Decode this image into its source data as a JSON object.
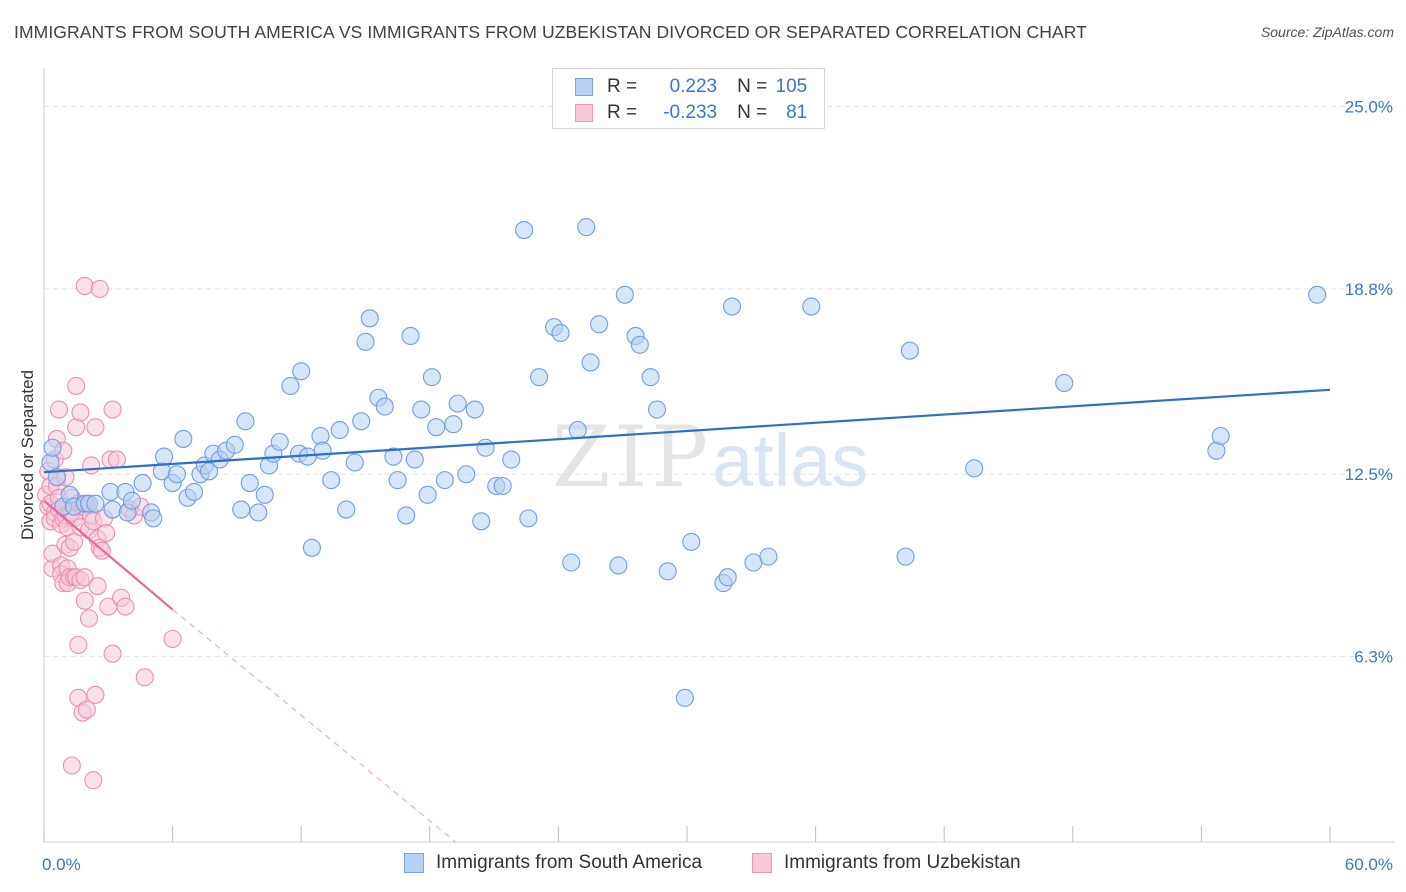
{
  "title": "IMMIGRANTS FROM SOUTH AMERICA VS IMMIGRANTS FROM UZBEKISTAN DIVORCED OR SEPARATED CORRELATION CHART",
  "source": "Source: ZipAtlas.com",
  "watermark": {
    "zip": "ZIP",
    "atlas": "atlas"
  },
  "legend": {
    "r_label": "R =",
    "n_label": "N =",
    "blue": {
      "r": "0.223",
      "n": "105"
    },
    "pink": {
      "r": "-0.233",
      "n": "81"
    }
  },
  "colors": {
    "blue_fill": "#b7d0f3",
    "blue_stroke": "#6f9fe2",
    "blue_line": "#2f6fcc",
    "pink_fill": "#f8c8d8",
    "pink_stroke": "#ee8fb0",
    "pink_line": "#e8689a",
    "tick_label": "#3a76cc"
  },
  "chart_data": {
    "type": "scatter",
    "title": "IMMIGRANTS FROM SOUTH AMERICA VS IMMIGRANTS FROM UZBEKISTAN DIVORCED OR SEPARATED CORRELATION CHART",
    "xlabel": "",
    "ylabel": "Divorced or Separated",
    "xlim": [
      0,
      60
    ],
    "ylim": [
      0,
      25.9
    ],
    "x_tick_labels": [
      "0.0%",
      "60.0%"
    ],
    "y_ticks": [
      6.3,
      12.5,
      18.8,
      25.0
    ],
    "y_tick_labels": [
      "6.3%",
      "12.5%",
      "18.8%",
      "25.0%"
    ],
    "grid": true,
    "legend_position": "bottom",
    "series": [
      {
        "name": "Immigrants from South America",
        "color": "blue",
        "trend": {
          "x": [
            0,
            60
          ],
          "y": [
            12.57,
            15.37
          ],
          "dashed_after": null
        },
        "points": [
          [
            0.3,
            12.9
          ],
          [
            0.4,
            13.4
          ],
          [
            0.6,
            12.4
          ],
          [
            0.9,
            11.4
          ],
          [
            1.2,
            11.8
          ],
          [
            1.4,
            11.4
          ],
          [
            1.9,
            11.5
          ],
          [
            2.1,
            11.5
          ],
          [
            2.4,
            11.5
          ],
          [
            3.1,
            11.9
          ],
          [
            3.2,
            11.3
          ],
          [
            3.8,
            11.9
          ],
          [
            3.9,
            11.2
          ],
          [
            4.1,
            11.6
          ],
          [
            4.6,
            12.2
          ],
          [
            5.0,
            11.2
          ],
          [
            5.1,
            11.0
          ],
          [
            5.5,
            12.6
          ],
          [
            5.6,
            13.1
          ],
          [
            6.0,
            12.2
          ],
          [
            6.2,
            12.5
          ],
          [
            6.5,
            13.7
          ],
          [
            6.7,
            11.7
          ],
          [
            7.0,
            11.9
          ],
          [
            7.3,
            12.5
          ],
          [
            7.5,
            12.8
          ],
          [
            7.7,
            12.6
          ],
          [
            7.9,
            13.2
          ],
          [
            8.2,
            13.0
          ],
          [
            8.5,
            13.3
          ],
          [
            8.9,
            13.5
          ],
          [
            9.2,
            11.3
          ],
          [
            9.4,
            14.3
          ],
          [
            9.6,
            12.2
          ],
          [
            10.0,
            11.2
          ],
          [
            10.3,
            11.8
          ],
          [
            10.5,
            12.8
          ],
          [
            10.7,
            13.2
          ],
          [
            11.0,
            13.6
          ],
          [
            11.5,
            15.5
          ],
          [
            11.9,
            13.2
          ],
          [
            12.0,
            16.0
          ],
          [
            12.3,
            13.1
          ],
          [
            12.5,
            10.0
          ],
          [
            12.9,
            13.8
          ],
          [
            13.0,
            13.3
          ],
          [
            13.4,
            12.3
          ],
          [
            13.8,
            14.0
          ],
          [
            14.1,
            11.3
          ],
          [
            14.5,
            12.9
          ],
          [
            14.8,
            14.3
          ],
          [
            15.0,
            17.0
          ],
          [
            15.2,
            17.8
          ],
          [
            15.6,
            15.1
          ],
          [
            15.9,
            14.8
          ],
          [
            16.3,
            13.1
          ],
          [
            16.5,
            12.3
          ],
          [
            16.9,
            11.1
          ],
          [
            17.1,
            17.2
          ],
          [
            17.3,
            13.0
          ],
          [
            17.6,
            14.7
          ],
          [
            17.9,
            11.8
          ],
          [
            18.1,
            15.8
          ],
          [
            18.3,
            14.1
          ],
          [
            18.7,
            12.3
          ],
          [
            19.1,
            14.2
          ],
          [
            19.3,
            14.9
          ],
          [
            19.7,
            12.5
          ],
          [
            20.1,
            14.7
          ],
          [
            20.4,
            10.9
          ],
          [
            20.6,
            13.4
          ],
          [
            21.1,
            12.1
          ],
          [
            21.4,
            12.1
          ],
          [
            21.8,
            13.0
          ],
          [
            22.4,
            20.8
          ],
          [
            22.6,
            11.0
          ],
          [
            23.1,
            15.8
          ],
          [
            23.8,
            17.5
          ],
          [
            24.1,
            17.3
          ],
          [
            24.6,
            9.5
          ],
          [
            24.9,
            14.0
          ],
          [
            25.3,
            20.9
          ],
          [
            25.5,
            16.3
          ],
          [
            25.9,
            17.6
          ],
          [
            26.8,
            9.4
          ],
          [
            27.1,
            18.6
          ],
          [
            27.6,
            17.2
          ],
          [
            27.8,
            16.9
          ],
          [
            28.3,
            15.8
          ],
          [
            28.6,
            14.7
          ],
          [
            29.1,
            9.2
          ],
          [
            29.9,
            4.9
          ],
          [
            30.2,
            10.2
          ],
          [
            31.7,
            8.8
          ],
          [
            31.9,
            9.0
          ],
          [
            32.1,
            18.2
          ],
          [
            33.1,
            9.5
          ],
          [
            33.8,
            9.7
          ],
          [
            35.8,
            18.2
          ],
          [
            40.2,
            9.7
          ],
          [
            40.4,
            16.7
          ],
          [
            43.4,
            12.7
          ],
          [
            47.6,
            15.6
          ],
          [
            54.7,
            13.3
          ],
          [
            54.9,
            13.8
          ],
          [
            59.4,
            18.6
          ]
        ]
      },
      {
        "name": "Immigrants from Uzbekistan",
        "color": "pink",
        "trend": {
          "x": [
            0,
            6.0
          ],
          "y": [
            11.6,
            7.9
          ],
          "dashed_to": [
            19.2,
            0
          ]
        },
        "points": [
          [
            0.1,
            11.8
          ],
          [
            0.2,
            12.6
          ],
          [
            0.2,
            11.4
          ],
          [
            0.3,
            10.9
          ],
          [
            0.3,
            12.1
          ],
          [
            0.3,
            11.5
          ],
          [
            0.4,
            9.3
          ],
          [
            0.4,
            9.8
          ],
          [
            0.5,
            13.0
          ],
          [
            0.5,
            11.2
          ],
          [
            0.5,
            11.0
          ],
          [
            0.6,
            13.7
          ],
          [
            0.6,
            12.4
          ],
          [
            0.6,
            12.1
          ],
          [
            0.7,
            14.7
          ],
          [
            0.7,
            11.7
          ],
          [
            0.7,
            11.3
          ],
          [
            0.8,
            10.8
          ],
          [
            0.8,
            9.4
          ],
          [
            0.8,
            9.1
          ],
          [
            0.9,
            11.0
          ],
          [
            0.9,
            8.8
          ],
          [
            0.9,
            13.3
          ],
          [
            1.0,
            10.1
          ],
          [
            1.0,
            12.4
          ],
          [
            1.0,
            11.1
          ],
          [
            1.1,
            9.3
          ],
          [
            1.1,
            10.7
          ],
          [
            1.1,
            8.8
          ],
          [
            1.2,
            11.2
          ],
          [
            1.2,
            10.0
          ],
          [
            1.2,
            9.0
          ],
          [
            1.3,
            2.6
          ],
          [
            1.3,
            11.7
          ],
          [
            1.3,
            11.2
          ],
          [
            1.4,
            10.2
          ],
          [
            1.4,
            9.0
          ],
          [
            1.4,
            11.0
          ],
          [
            1.5,
            15.5
          ],
          [
            1.5,
            14.1
          ],
          [
            1.5,
            9.0
          ],
          [
            1.6,
            6.7
          ],
          [
            1.6,
            4.9
          ],
          [
            1.6,
            11.5
          ],
          [
            1.7,
            10.7
          ],
          [
            1.7,
            8.9
          ],
          [
            1.7,
            14.6
          ],
          [
            1.8,
            4.4
          ],
          [
            1.8,
            11.4
          ],
          [
            1.9,
            18.9
          ],
          [
            1.9,
            9.0
          ],
          [
            1.9,
            8.2
          ],
          [
            2.0,
            4.5
          ],
          [
            2.0,
            11.5
          ],
          [
            2.1,
            10.6
          ],
          [
            2.1,
            7.6
          ],
          [
            2.2,
            11.1
          ],
          [
            2.2,
            12.8
          ],
          [
            2.3,
            10.9
          ],
          [
            2.3,
            2.1
          ],
          [
            2.4,
            14.1
          ],
          [
            2.4,
            5.0
          ],
          [
            2.5,
            8.7
          ],
          [
            2.5,
            10.3
          ],
          [
            2.6,
            10.0
          ],
          [
            2.6,
            18.8
          ],
          [
            2.7,
            9.9
          ],
          [
            2.8,
            11.0
          ],
          [
            2.9,
            10.5
          ],
          [
            3.0,
            8.0
          ],
          [
            3.1,
            13.0
          ],
          [
            3.2,
            14.7
          ],
          [
            3.2,
            6.4
          ],
          [
            3.4,
            13.0
          ],
          [
            3.6,
            8.3
          ],
          [
            3.8,
            8.0
          ],
          [
            4.0,
            11.3
          ],
          [
            4.2,
            11.1
          ],
          [
            4.5,
            11.4
          ],
          [
            4.7,
            5.6
          ],
          [
            6.0,
            6.9
          ]
        ]
      }
    ]
  },
  "bottom_legend": {
    "blue_label": "Immigrants from South America",
    "pink_label": "Immigrants from Uzbekistan"
  }
}
